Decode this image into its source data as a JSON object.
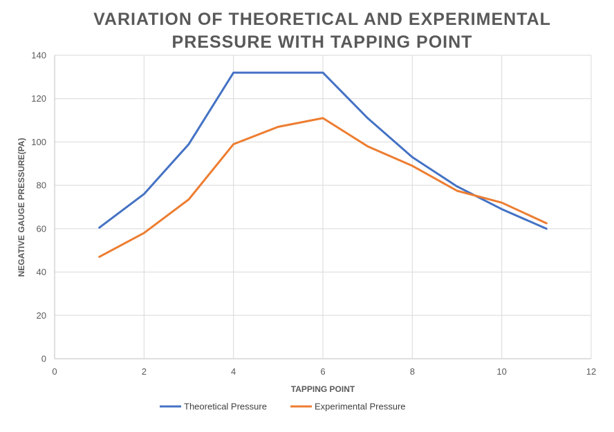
{
  "chart_data": {
    "type": "line",
    "title_lines": [
      "VARIATION OF THEORETICAL AND EXPERIMENTAL",
      "PRESSURE WITH TAPPING POINT"
    ],
    "xlabel": "TAPPING POINT",
    "ylabel": "NEGATIVE GAUGE PRESSURE(PA)",
    "xlim": [
      0,
      12
    ],
    "ylim": [
      0,
      140
    ],
    "x_ticks": [
      0,
      2,
      4,
      6,
      8,
      10,
      12
    ],
    "y_ticks": [
      0,
      20,
      40,
      60,
      80,
      100,
      120,
      140
    ],
    "grid": true,
    "legend_position": "bottom",
    "series": [
      {
        "name": "Theoretical Pressure",
        "color": "#4472c4",
        "x": [
          1,
          2,
          3,
          4,
          5,
          6,
          7,
          8,
          9,
          10,
          11
        ],
        "y": [
          60.5,
          76,
          99,
          132,
          132,
          132,
          111,
          93,
          79.5,
          69,
          60
        ]
      },
      {
        "name": "Experimental Pressure",
        "color": "#ed7d31",
        "x": [
          1,
          2,
          3,
          4,
          5,
          6,
          7,
          8,
          9,
          10,
          11
        ],
        "y": [
          47,
          58,
          73.5,
          99,
          107,
          111,
          98,
          89,
          77.5,
          72,
          62.5
        ]
      }
    ]
  }
}
